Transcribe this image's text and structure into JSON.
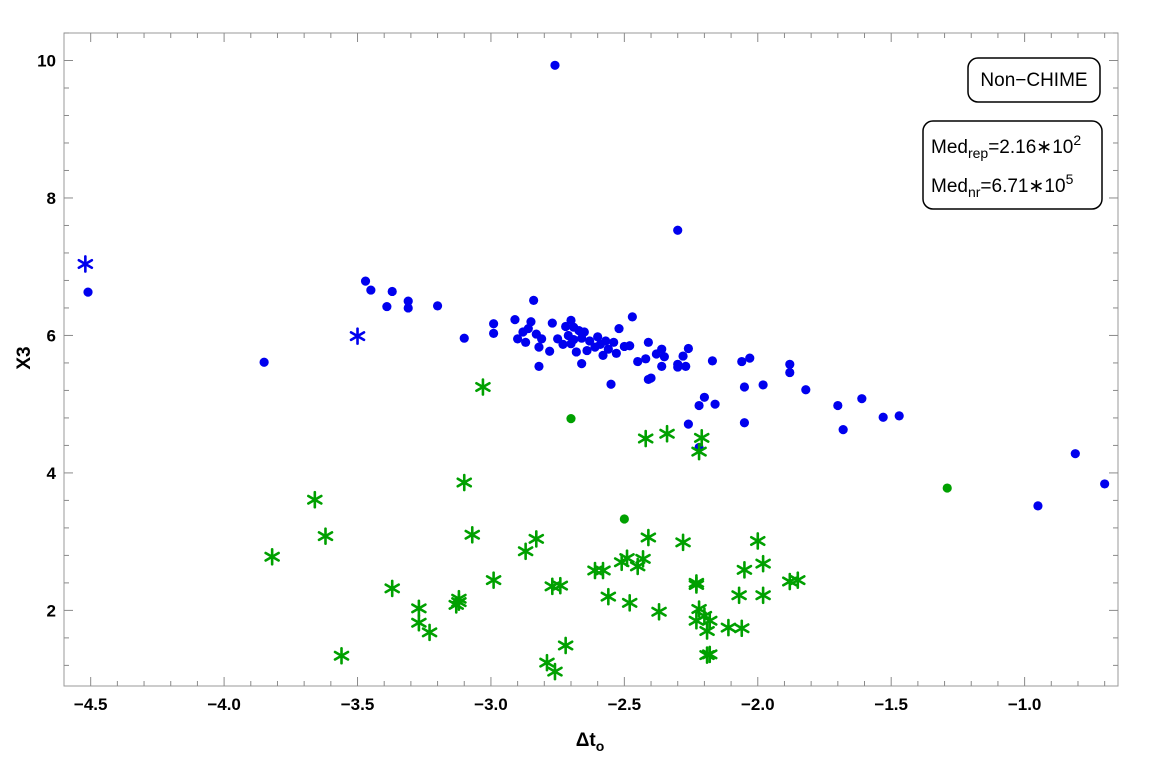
{
  "chart_data": {
    "type": "scatter",
    "title": "",
    "xlabel": "Δt",
    "xlabel_sub": "o",
    "ylabel": "X3",
    "xlim": [
      -4.6,
      -0.65
    ],
    "ylim": [
      0.9,
      10.4
    ],
    "xticks": [
      -4.5,
      -4.0,
      -3.5,
      -3.0,
      -2.5,
      -2.0,
      -1.5,
      -1.0
    ],
    "xtick_labels": [
      "-4.5",
      "-4.0",
      "-3.5",
      "-3.0",
      "-2.5",
      "-2.0",
      "-1.5",
      "-1.0"
    ],
    "yticks": [
      2,
      4,
      6,
      8,
      10
    ],
    "ytick_labels": [
      "2",
      "4",
      "6",
      "8",
      "10"
    ],
    "grid": false,
    "annotations": {
      "box1": "Non−CHIME",
      "rep": {
        "prefix": "Med",
        "sub": "rep",
        "body": "=2.16∗10",
        "sup": "2"
      },
      "nr": {
        "prefix": "Med",
        "sub": "nr",
        "body": "=6.71∗10",
        "sup": "5"
      }
    },
    "colors": {
      "blue": "#0000ee",
      "green": "#00a000"
    },
    "series": [
      {
        "marker": "dot",
        "color": "#0000ee",
        "points": [
          [
            -4.51,
            6.63
          ],
          [
            -3.85,
            5.61
          ],
          [
            -3.47,
            6.79
          ],
          [
            -3.45,
            6.66
          ],
          [
            -3.39,
            6.42
          ],
          [
            -3.37,
            6.64
          ],
          [
            -3.31,
            6.5
          ],
          [
            -3.31,
            6.4
          ],
          [
            -3.2,
            6.43
          ],
          [
            -3.1,
            5.96
          ],
          [
            -2.99,
            6.17
          ],
          [
            -2.99,
            6.03
          ],
          [
            -2.91,
            6.23
          ],
          [
            -2.9,
            5.95
          ],
          [
            -2.88,
            6.05
          ],
          [
            -2.87,
            5.9
          ],
          [
            -2.86,
            6.1
          ],
          [
            -2.85,
            6.2
          ],
          [
            -2.84,
            6.51
          ],
          [
            -2.83,
            6.02
          ],
          [
            -2.82,
            5.83
          ],
          [
            -2.82,
            5.55
          ],
          [
            -2.81,
            5.95
          ],
          [
            -2.78,
            5.77
          ],
          [
            -2.77,
            6.18
          ],
          [
            -2.76,
            9.93
          ],
          [
            -2.75,
            5.95
          ],
          [
            -2.73,
            5.87
          ],
          [
            -2.72,
            6.13
          ],
          [
            -2.71,
            6.0
          ],
          [
            -2.7,
            6.22
          ],
          [
            -2.7,
            5.88
          ],
          [
            -2.69,
            6.12
          ],
          [
            -2.69,
            5.94
          ],
          [
            -2.68,
            5.76
          ],
          [
            -2.67,
            6.07
          ],
          [
            -2.66,
            5.96
          ],
          [
            -2.66,
            5.59
          ],
          [
            -2.65,
            6.05
          ],
          [
            -2.64,
            5.78
          ],
          [
            -2.63,
            5.92
          ],
          [
            -2.61,
            5.83
          ],
          [
            -2.6,
            5.98
          ],
          [
            -2.59,
            5.87
          ],
          [
            -2.58,
            5.71
          ],
          [
            -2.57,
            5.92
          ],
          [
            -2.56,
            5.8
          ],
          [
            -2.55,
            5.29
          ],
          [
            -2.54,
            5.9
          ],
          [
            -2.53,
            5.74
          ],
          [
            -2.52,
            6.1
          ],
          [
            -2.5,
            5.84
          ],
          [
            -2.48,
            5.85
          ],
          [
            -2.47,
            6.27
          ],
          [
            -2.45,
            5.62
          ],
          [
            -2.42,
            5.66
          ],
          [
            -2.41,
            5.9
          ],
          [
            -2.41,
            5.36
          ],
          [
            -2.4,
            5.38
          ],
          [
            -2.38,
            5.73
          ],
          [
            -2.36,
            5.55
          ],
          [
            -2.36,
            5.8
          ],
          [
            -2.35,
            5.69
          ],
          [
            -2.3,
            7.53
          ],
          [
            -2.3,
            5.58
          ],
          [
            -2.3,
            5.54
          ],
          [
            -2.28,
            5.7
          ],
          [
            -2.27,
            5.55
          ],
          [
            -2.26,
            4.71
          ],
          [
            -2.26,
            5.81
          ],
          [
            -2.22,
            4.37
          ],
          [
            -2.22,
            4.98
          ],
          [
            -2.2,
            5.1
          ],
          [
            -2.17,
            5.63
          ],
          [
            -2.16,
            5.0
          ],
          [
            -2.06,
            5.62
          ],
          [
            -2.05,
            5.25
          ],
          [
            -2.05,
            4.73
          ],
          [
            -2.03,
            5.67
          ],
          [
            -1.98,
            5.28
          ],
          [
            -1.88,
            5.58
          ],
          [
            -1.88,
            5.46
          ],
          [
            -1.82,
            5.21
          ],
          [
            -1.7,
            4.98
          ],
          [
            -1.68,
            4.63
          ],
          [
            -1.61,
            5.08
          ],
          [
            -1.53,
            4.81
          ],
          [
            -1.47,
            4.83
          ],
          [
            -0.95,
            3.52
          ],
          [
            -0.81,
            4.28
          ],
          [
            -0.7,
            3.84
          ]
        ]
      },
      {
        "marker": "star",
        "color": "#0000ee",
        "points": [
          [
            -4.52,
            7.04
          ],
          [
            -3.5,
            5.99
          ]
        ]
      },
      {
        "marker": "dot",
        "color": "#00a000",
        "points": [
          [
            -2.7,
            4.79
          ],
          [
            -2.5,
            3.33
          ],
          [
            -1.29,
            3.78
          ]
        ]
      },
      {
        "marker": "star",
        "color": "#00a000",
        "points": [
          [
            -3.82,
            2.78
          ],
          [
            -3.66,
            3.61
          ],
          [
            -3.62,
            3.08
          ],
          [
            -3.56,
            1.34
          ],
          [
            -3.37,
            2.32
          ],
          [
            -3.27,
            2.03
          ],
          [
            -3.27,
            1.82
          ],
          [
            -3.23,
            1.68
          ],
          [
            -3.13,
            2.08
          ],
          [
            -3.12,
            2.17
          ],
          [
            -3.12,
            2.12
          ],
          [
            -3.1,
            3.86
          ],
          [
            -3.07,
            3.1
          ],
          [
            -3.03,
            5.25
          ],
          [
            -2.99,
            2.44
          ],
          [
            -2.87,
            2.86
          ],
          [
            -2.83,
            3.04
          ],
          [
            -2.79,
            1.24
          ],
          [
            -2.77,
            2.35
          ],
          [
            -2.76,
            1.11
          ],
          [
            -2.74,
            2.36
          ],
          [
            -2.72,
            1.49
          ],
          [
            -2.61,
            2.58
          ],
          [
            -2.58,
            2.58
          ],
          [
            -2.56,
            2.2
          ],
          [
            -2.51,
            2.7
          ],
          [
            -2.49,
            2.76
          ],
          [
            -2.48,
            2.11
          ],
          [
            -2.45,
            2.64
          ],
          [
            -2.43,
            2.75
          ],
          [
            -2.42,
            4.5
          ],
          [
            -2.41,
            3.06
          ],
          [
            -2.37,
            1.98
          ],
          [
            -2.34,
            4.57
          ],
          [
            -2.28,
            2.99
          ],
          [
            -2.23,
            2.37
          ],
          [
            -2.23,
            2.4
          ],
          [
            -2.23,
            1.85
          ],
          [
            -2.22,
            2.02
          ],
          [
            -2.22,
            4.31
          ],
          [
            -2.21,
            4.51
          ],
          [
            -2.2,
            1.92
          ],
          [
            -2.19,
            1.7
          ],
          [
            -2.19,
            1.35
          ],
          [
            -2.18,
            1.85
          ],
          [
            -2.18,
            1.36
          ],
          [
            -2.11,
            1.75
          ],
          [
            -2.07,
            2.22
          ],
          [
            -2.06,
            1.74
          ],
          [
            -2.05,
            2.59
          ],
          [
            -2.0,
            3.01
          ],
          [
            -1.98,
            2.68
          ],
          [
            -1.98,
            2.22
          ],
          [
            -1.88,
            2.42
          ],
          [
            -1.85,
            2.44
          ]
        ]
      }
    ]
  }
}
